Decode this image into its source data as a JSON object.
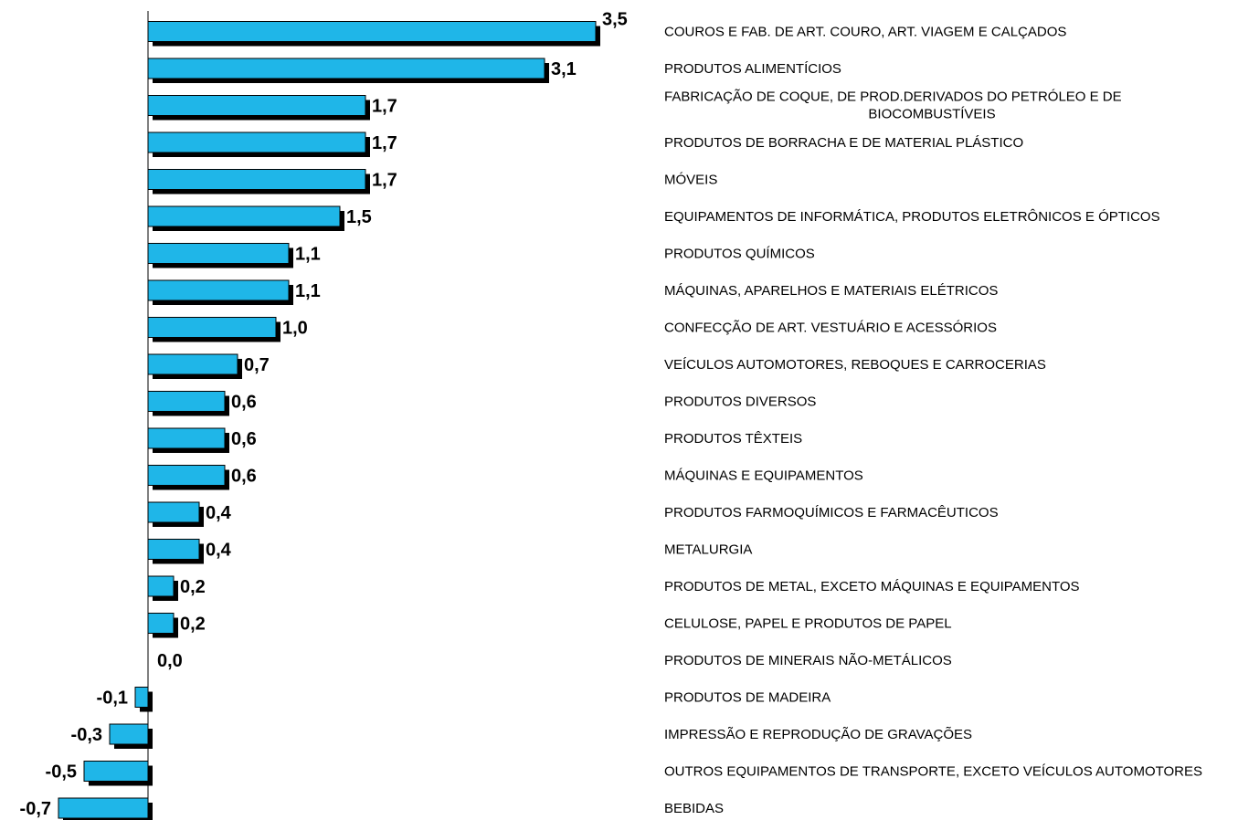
{
  "chart_data": {
    "type": "bar",
    "orientation": "horizontal",
    "title": "",
    "xlabel": "",
    "ylabel": "",
    "bar_color": "#1fb6e8",
    "shadow_color": "#000000",
    "xlim": [
      -0.7,
      3.5
    ],
    "grid": false,
    "legend": "none",
    "data_labels": true,
    "decimal_separator": ",",
    "categories": [
      "COUROS E FAB. DE ART. COURO, ART. VIAGEM E CALÇADOS",
      "PRODUTOS ALIMENTÍCIOS",
      "FABRICAÇÃO DE COQUE, DE PROD.DERIVADOS DO PETRÓLEO E DE BIOCOMBUSTÍVEIS",
      "PRODUTOS DE BORRACHA E DE MATERIAL PLÁSTICO",
      "MÓVEIS",
      "EQUIPAMENTOS DE INFORMÁTICA, PRODUTOS ELETRÔNICOS E ÓPTICOS",
      "PRODUTOS QUÍMICOS",
      "MÁQUINAS, APARELHOS E MATERIAIS ELÉTRICOS",
      "CONFECÇÃO DE ART. VESTUÁRIO E ACESSÓRIOS",
      "VEÍCULOS AUTOMOTORES, REBOQUES E CARROCERIAS",
      "PRODUTOS DIVERSOS",
      "PRODUTOS TÊXTEIS",
      "MÁQUINAS E EQUIPAMENTOS",
      "PRODUTOS FARMOQUÍMICOS E FARMACÊUTICOS",
      "METALURGIA",
      "PRODUTOS DE METAL, EXCETO MÁQUINAS E EQUIPAMENTOS",
      "CELULOSE, PAPEL E PRODUTOS DE PAPEL",
      "PRODUTOS DE MINERAIS NÃO-METÁLICOS",
      "PRODUTOS DE MADEIRA",
      "IMPRESSÃO E REPRODUÇÃO DE GRAVAÇÕES",
      "OUTROS EQUIPAMENTOS DE TRANSPORTE, EXCETO VEÍCULOS AUTOMOTORES",
      "BEBIDAS"
    ],
    "values": [
      3.5,
      3.1,
      1.7,
      1.7,
      1.7,
      1.5,
      1.1,
      1.1,
      1.0,
      0.7,
      0.6,
      0.6,
      0.6,
      0.4,
      0.4,
      0.2,
      0.2,
      0.0,
      -0.1,
      -0.3,
      -0.5,
      -0.7
    ]
  }
}
